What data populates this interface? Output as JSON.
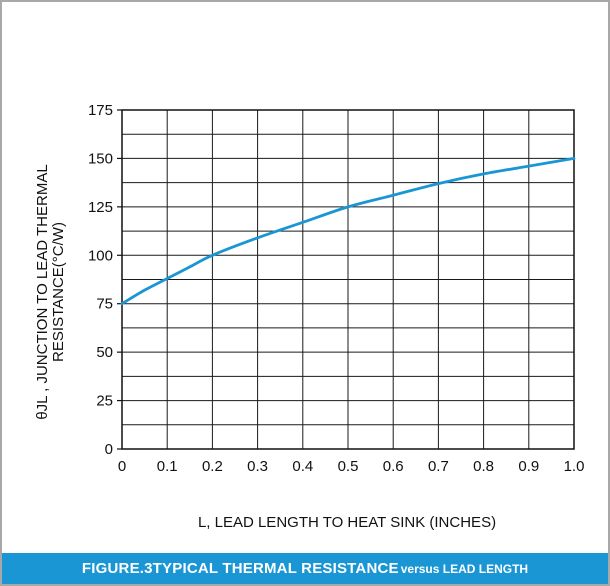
{
  "chart_data": {
    "type": "line",
    "caption": {
      "main": "FIGURE.3TYPICAL THERMAL RESISTANCE",
      "suffix": "versus LEAD LENGTH"
    },
    "xlabel": "L, LEAD LENGTH TO HEAT SINK (INCHES)",
    "ylabel_line1": "θJL ,  JUNCTION TO LEAD THERMAL",
    "ylabel_line2": "RESISTANCE(°C/W)",
    "xlim": [
      0,
      1.0
    ],
    "ylim": [
      0,
      175
    ],
    "x_ticks": [
      0,
      0.1,
      0.2,
      0.3,
      0.4,
      0.5,
      0.6,
      0.7,
      0.8,
      0.9,
      1.0
    ],
    "x_tick_labels": [
      "0",
      "0.1",
      "0.2",
      "0.3",
      "0.4",
      "0.5",
      "0.6",
      "0.7",
      "0.8",
      "0.9",
      "1.0"
    ],
    "y_ticks": [
      0,
      25,
      50,
      75,
      100,
      125,
      150,
      175
    ],
    "y_tick_labels": [
      "0",
      "25",
      "50",
      "75",
      "100",
      "125",
      "150",
      "175"
    ],
    "grid": true,
    "series": [
      {
        "color": "#1a96d4",
        "x": [
          0,
          0.05,
          0.1,
          0.15,
          0.2,
          0.3,
          0.4,
          0.5,
          0.6,
          0.7,
          0.8,
          0.9,
          1.0
        ],
        "y": [
          75,
          82,
          88,
          94,
          100,
          109,
          117,
          125,
          131,
          137,
          142,
          146,
          150
        ]
      }
    ]
  }
}
